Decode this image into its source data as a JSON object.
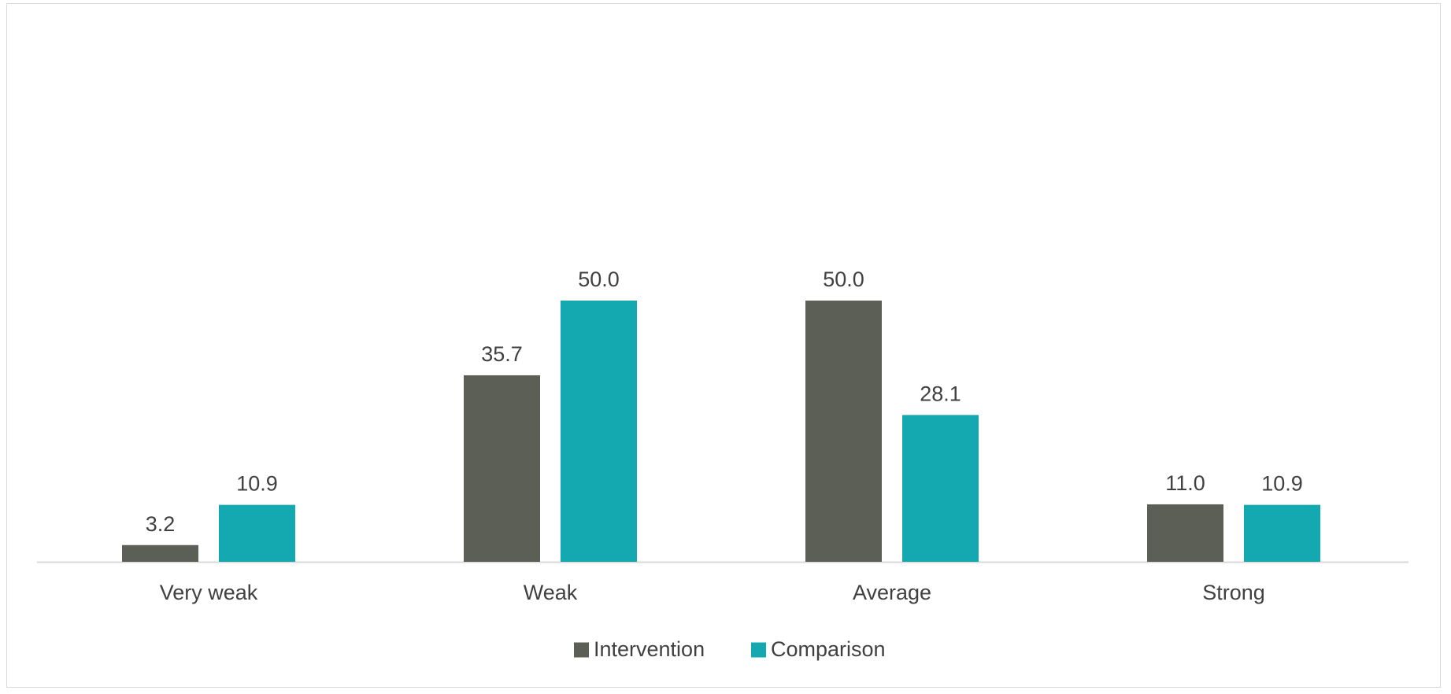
{
  "chart_data": {
    "type": "bar",
    "title": "",
    "xlabel": "",
    "ylabel": "",
    "categories": [
      "Very weak",
      "Weak",
      "Average",
      "Strong"
    ],
    "series": [
      {
        "name": "Intervention",
        "values": [
          3.2,
          35.7,
          50.0,
          11.0
        ],
        "labels": [
          "3.2",
          "35.7",
          "50.0",
          "11.0"
        ],
        "color": "#5c5f55"
      },
      {
        "name": "Comparison",
        "values": [
          10.9,
          50.0,
          28.1,
          10.9
        ],
        "labels": [
          "10.9",
          "50.0",
          "28.1",
          "10.9"
        ],
        "color": "#14a8b0"
      }
    ],
    "ylim": [
      0,
      75
    ],
    "grid": false,
    "legend": "bottom",
    "axis_color": "#d9d9d9"
  }
}
